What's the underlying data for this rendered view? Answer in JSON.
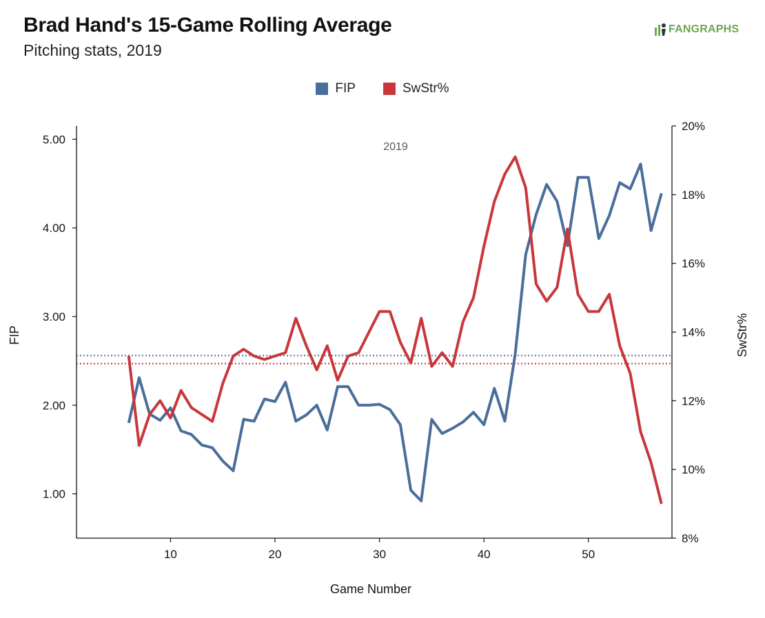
{
  "header": {
    "title": "Brad Hand's 15-Game Rolling Average",
    "subtitle": "Pitching stats, 2019",
    "logo_text": "FANGRAPHS"
  },
  "colors": {
    "fip": "#4a6d9a",
    "swstr": "#c8373b",
    "logo": "#6aa84f"
  },
  "chart_data": {
    "type": "line",
    "title": "Brad Hand's 15-Game Rolling Average",
    "subtitle": "Pitching stats, 2019",
    "xlabel": "Game Number",
    "ylabel_left": "FIP",
    "ylabel_right": "SwStr%",
    "annotation": "2019",
    "xlim": [
      1,
      58
    ],
    "ylim_left": [
      0.5,
      5.15
    ],
    "ylim_right": [
      8,
      20
    ],
    "x_ticks": [
      "10",
      "20",
      "30",
      "40",
      "50"
    ],
    "x_tick_values": [
      10,
      20,
      30,
      40,
      50
    ],
    "y_left_ticks": [
      "1.00",
      "2.00",
      "3.00",
      "4.00",
      "5.00"
    ],
    "y_left_tick_values": [
      1,
      2,
      3,
      4,
      5
    ],
    "y_right_ticks": [
      "8%",
      "10%",
      "12%",
      "14%",
      "16%",
      "18%",
      "20%"
    ],
    "y_right_tick_values": [
      8,
      10,
      12,
      14,
      16,
      18,
      20
    ],
    "legend": "top-center",
    "grid": false,
    "series": [
      {
        "name": "FIP",
        "axis": "left",
        "x": [
          6,
          7,
          8,
          9,
          10,
          11,
          12,
          13,
          14,
          15,
          16,
          17,
          18,
          19,
          20,
          21,
          22,
          23,
          24,
          25,
          26,
          27,
          28,
          29,
          30,
          31,
          32,
          33,
          34,
          35,
          36,
          37,
          38,
          39,
          40,
          41,
          42,
          43,
          44,
          45,
          46,
          47,
          48,
          49,
          50,
          51,
          52,
          53,
          54,
          55,
          56,
          57
        ],
        "values": [
          1.8,
          2.31,
          1.9,
          1.83,
          1.97,
          1.71,
          1.67,
          1.55,
          1.52,
          1.37,
          1.26,
          1.84,
          1.82,
          2.07,
          2.04,
          2.26,
          1.82,
          1.89,
          2.0,
          1.72,
          2.21,
          2.21,
          2.0,
          2.0,
          2.01,
          1.95,
          1.78,
          1.04,
          0.92,
          1.84,
          1.68,
          1.74,
          1.81,
          1.92,
          1.78,
          2.19,
          1.82,
          2.58,
          3.7,
          4.15,
          4.49,
          4.3,
          3.8,
          4.57,
          4.57,
          3.88,
          4.14,
          4.51,
          4.44,
          4.72,
          3.97,
          4.39
        ]
      },
      {
        "name": "SwStr%",
        "axis": "right",
        "x": [
          6,
          7,
          8,
          9,
          10,
          11,
          12,
          13,
          14,
          15,
          16,
          17,
          18,
          19,
          20,
          21,
          22,
          23,
          24,
          25,
          26,
          27,
          28,
          29,
          30,
          31,
          32,
          33,
          34,
          35,
          36,
          37,
          38,
          39,
          40,
          41,
          42,
          43,
          44,
          45,
          46,
          47,
          48,
          49,
          50,
          51,
          52,
          53,
          54,
          55,
          56,
          57
        ],
        "values": [
          13.3,
          10.7,
          11.6,
          12.0,
          11.5,
          12.3,
          11.8,
          11.6,
          11.4,
          12.5,
          13.3,
          13.5,
          13.3,
          13.2,
          13.3,
          13.4,
          14.4,
          13.6,
          12.9,
          13.6,
          12.6,
          13.3,
          13.4,
          14.0,
          14.6,
          14.6,
          13.7,
          13.1,
          14.4,
          13.0,
          13.4,
          13.0,
          14.3,
          15.0,
          16.5,
          17.8,
          18.6,
          19.1,
          18.2,
          15.4,
          14.9,
          15.3,
          17.0,
          15.1,
          14.6,
          14.6,
          15.1,
          13.6,
          12.8,
          11.1,
          10.2,
          9.0
        ]
      }
    ],
    "reference_lines": [
      {
        "series": "FIP",
        "axis": "left",
        "value": 2.56,
        "style": "dotted"
      },
      {
        "series": "SwStr%",
        "axis": "right",
        "value": 13.08,
        "style": "dotted"
      }
    ]
  }
}
